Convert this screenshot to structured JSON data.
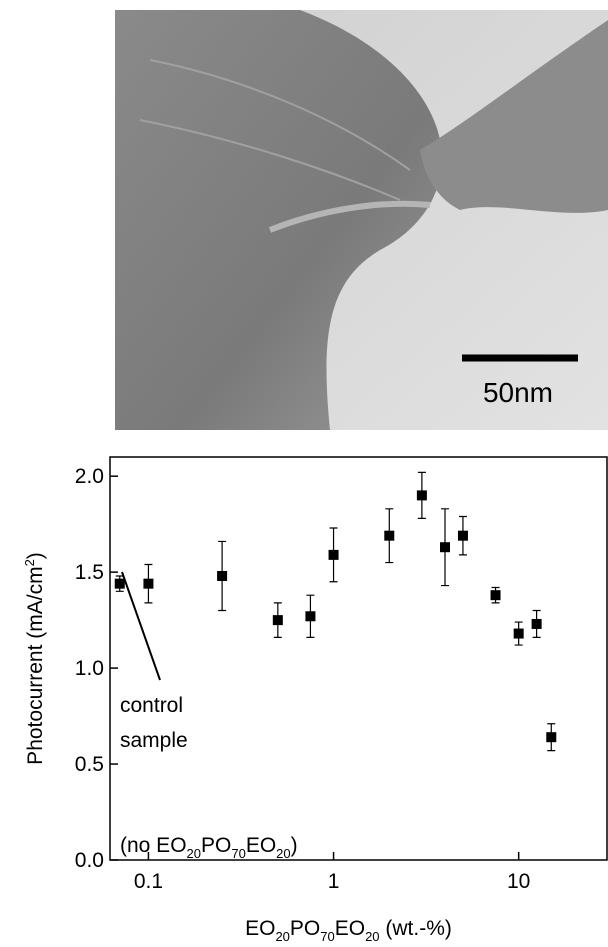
{
  "image": {
    "scale_bar": "50nm"
  },
  "chart_data": {
    "type": "scatter",
    "x": [
      0.07,
      0.1,
      0.25,
      0.5,
      0.75,
      1,
      2,
      3,
      4,
      5,
      7.5,
      10,
      12.5,
      15
    ],
    "values": [
      1.44,
      1.44,
      1.48,
      1.25,
      1.27,
      1.59,
      1.69,
      1.9,
      1.63,
      1.69,
      1.38,
      1.18,
      1.23,
      0.64
    ],
    "errors": [
      0.04,
      0.1,
      0.18,
      0.09,
      0.11,
      0.14,
      0.14,
      0.12,
      0.2,
      0.1,
      0.04,
      0.06,
      0.07,
      0.07
    ],
    "color": "#000000",
    "xlog": true,
    "xlim": [
      0.062,
      30
    ],
    "xticks": [
      0.1,
      1,
      10
    ],
    "ylim": [
      0,
      2.1
    ],
    "yticks": [
      {
        "value": 0,
        "label": "0.0"
      },
      0.5,
      {
        "value": 1,
        "label": "1.0"
      },
      1.5,
      {
        "value": 2,
        "label": "2.0"
      }
    ],
    "xlabel": [
      "EO",
      "20",
      "PO",
      "70",
      "EO",
      "20",
      " (wt.-%)"
    ],
    "ylabel": [
      "Photocurrent (mA/cm",
      "2",
      ")"
    ],
    "annotation": {
      "lines": [
        "control",
        "sample"
      ],
      "formula": [
        "(no EO",
        "20",
        "PO",
        "70",
        "EO",
        "20",
        ")"
      ]
    }
  }
}
